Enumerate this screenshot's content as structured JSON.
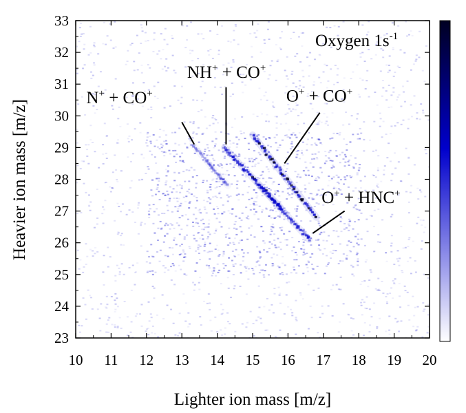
{
  "chart_data": {
    "type": "heatmap",
    "title": "",
    "xlabel": "Lighter ion mass [m/z]",
    "ylabel": "Heavier ion mass [m/z]",
    "xlim": [
      10,
      20
    ],
    "ylim": [
      23,
      33
    ],
    "x_ticks": [
      "10",
      "11",
      "12",
      "13",
      "14",
      "15",
      "16",
      "17",
      "18",
      "19",
      "20"
    ],
    "y_ticks": [
      "23",
      "24",
      "25",
      "26",
      "27",
      "28",
      "29",
      "30",
      "31",
      "32",
      "33"
    ],
    "colormap": [
      "#ffffff",
      "#0000cc",
      "#000022"
    ],
    "grid": false,
    "colorbar": true,
    "inset_label": {
      "base": "Oxygen 1s",
      "sup": "-1"
    },
    "coincidence_lines": [
      {
        "name": "NH+ + CO+",
        "start": [
          14.2,
          29.0
        ],
        "end": [
          15.8,
          27.1
        ],
        "intensity": 0.9
      },
      {
        "name": "O+ + CO+",
        "start": [
          15.0,
          29.4
        ],
        "end": [
          16.8,
          26.8
        ],
        "intensity": 1.0
      },
      {
        "name": "O+ + HNC+",
        "start": [
          15.2,
          27.8
        ],
        "end": [
          16.6,
          26.1
        ],
        "intensity": 0.75
      },
      {
        "name": "N+ + CO+",
        "start": [
          13.3,
          29.1
        ],
        "end": [
          14.3,
          27.8
        ],
        "intensity": 0.3
      }
    ],
    "annotations": [
      {
        "parts": [
          {
            "t": "N"
          },
          {
            "t": "+",
            "sup": true
          },
          {
            "t": " + CO"
          },
          {
            "t": "+",
            "sup": true
          }
        ],
        "pos": [
          10.3,
          30.4
        ],
        "pointer_from": [
          13.0,
          29.8
        ],
        "pointer_to": [
          13.35,
          29.1
        ]
      },
      {
        "parts": [
          {
            "t": "NH"
          },
          {
            "t": "+",
            "sup": true
          },
          {
            "t": " + CO"
          },
          {
            "t": "+",
            "sup": true
          }
        ],
        "pos": [
          13.15,
          31.2
        ],
        "pointer_from": [
          14.25,
          30.9
        ],
        "pointer_to": [
          14.25,
          29.1
        ]
      },
      {
        "parts": [
          {
            "t": "O"
          },
          {
            "t": "+",
            "sup": true
          },
          {
            "t": " + CO"
          },
          {
            "t": "+",
            "sup": true
          }
        ],
        "pos": [
          15.95,
          30.45
        ],
        "pointer_from": [
          16.9,
          30.1
        ],
        "pointer_to": [
          15.9,
          28.5
        ]
      },
      {
        "parts": [
          {
            "t": "O"
          },
          {
            "t": "+",
            "sup": true
          },
          {
            "t": " + HNC"
          },
          {
            "t": "+",
            "sup": true
          }
        ],
        "pos": [
          16.95,
          27.25
        ],
        "pointer_from": [
          17.6,
          27.0
        ],
        "pointer_to": [
          16.7,
          26.3
        ]
      }
    ]
  }
}
